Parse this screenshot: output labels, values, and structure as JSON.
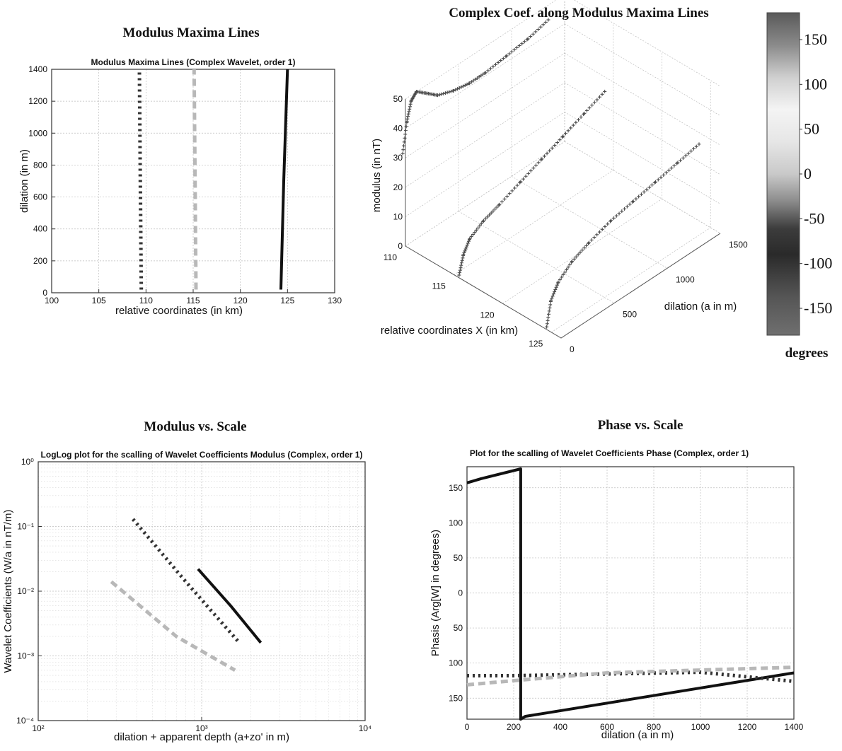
{
  "figure_titles": {
    "maxima": "Modulus Maxima Lines",
    "complex3d": "Complex Coef.  along Modulus Maxima Lines",
    "modulus": "Modulus vs. Scale",
    "phase": "Phase vs. Scale"
  },
  "colorbar": {
    "ticks": [
      "150",
      "100",
      "50",
      "0",
      "-50",
      "-100",
      "-150"
    ],
    "unit": "degrees",
    "range": [
      -180,
      180
    ]
  },
  "chart_data": [
    {
      "id": "maxima",
      "type": "line",
      "title": "Modulus Maxima Lines (Complex Wavelet, order 1)",
      "xlabel": "relative coordinates (in km)",
      "ylabel": "dilation (in m)",
      "xlim": [
        100,
        130
      ],
      "ylim": [
        0,
        1400
      ],
      "xticks": [
        "100",
        "105",
        "110",
        "115",
        "120",
        "125",
        "130"
      ],
      "yticks": [
        "0",
        "200",
        "400",
        "600",
        "800",
        "1000",
        "1200",
        "1400"
      ],
      "grid": true,
      "series": [
        {
          "style": "dotted",
          "color": "#333333",
          "x": [
            109.5,
            109.4,
            109.3
          ],
          "y": [
            20,
            700,
            1400
          ]
        },
        {
          "style": "dashed",
          "color": "#b8b8b8",
          "x": [
            115.3,
            115.2,
            115.1
          ],
          "y": [
            20,
            700,
            1400
          ]
        },
        {
          "style": "solid",
          "color": "#111111",
          "x": [
            124.3,
            124.6,
            125.0
          ],
          "y": [
            20,
            700,
            1400
          ]
        }
      ]
    },
    {
      "id": "complex3d",
      "type": "scatter",
      "xlabel": "relative coordinates X (in km)",
      "ylabel": "dilation (a in m)",
      "zlabel": "modulus (in nT)",
      "xticks": [
        "110",
        "115",
        "120",
        "125"
      ],
      "yticks": [
        "0",
        "500",
        "1000",
        "1500"
      ],
      "zticks": [
        "0",
        "10",
        "20",
        "30",
        "40",
        "50"
      ],
      "xlim": [
        110,
        126
      ],
      "ylim": [
        0,
        1500
      ],
      "zlim": [
        0,
        50
      ],
      "series": [
        {
          "x": [
            109.5,
            109.5,
            109.5,
            109.5,
            109.5,
            109.5,
            109.5,
            109.5,
            109.5,
            109.5,
            109.5,
            109.5
          ],
          "y": [
            20,
            60,
            100,
            150,
            250,
            350,
            500,
            650,
            800,
            1000,
            1200,
            1400
          ],
          "z": [
            30,
            40,
            46,
            48,
            45,
            42,
            40,
            39,
            39,
            40,
            41,
            43
          ]
        },
        {
          "x": [
            115.3,
            115.3,
            115.3,
            115.3,
            115.3,
            115.3,
            115.3,
            115.3,
            115.3,
            115.3
          ],
          "y": [
            20,
            60,
            120,
            250,
            400,
            600,
            800,
            1000,
            1200,
            1400
          ],
          "z": [
            0,
            6,
            10,
            13,
            15,
            18,
            21,
            24,
            27,
            30
          ]
        },
        {
          "x": [
            124.3,
            124.3,
            124.4,
            124.4,
            124.5,
            124.6,
            124.7,
            124.8,
            124.9,
            125.0
          ],
          "y": [
            20,
            60,
            120,
            250,
            400,
            600,
            800,
            1000,
            1200,
            1400
          ],
          "z": [
            0,
            8,
            13,
            17,
            20,
            23,
            25,
            27,
            29,
            31
          ]
        }
      ]
    },
    {
      "id": "modulus",
      "type": "line",
      "title": "LogLog plot for the scalling of Wavelet Coefficients Modulus (Complex, order 1)",
      "xlabel": "dilation + apparent depth (a+zo' in m)",
      "ylabel": "Wavelet Coefficients (W/a  in nT/m)",
      "xscale": "log",
      "yscale": "log",
      "xlim": [
        100,
        10000
      ],
      "ylim": [
        0.0001,
        1
      ],
      "xticks": [
        "10²",
        "10³",
        "10⁴"
      ],
      "yticks": [
        "10⁻⁴",
        "10⁻³",
        "10⁻²",
        "10⁻¹",
        "10⁰"
      ],
      "grid": true,
      "series": [
        {
          "style": "dotted",
          "color": "#333333",
          "x": [
            380,
            800,
            1700
          ],
          "y": [
            0.13,
            0.014,
            0.0016
          ]
        },
        {
          "style": "dashed",
          "color": "#b8b8b8",
          "x": [
            280,
            700,
            1600
          ],
          "y": [
            0.014,
            0.002,
            0.0006
          ]
        },
        {
          "style": "solid",
          "color": "#111111",
          "x": [
            950,
            1500,
            2300
          ],
          "y": [
            0.022,
            0.006,
            0.0016
          ]
        }
      ]
    },
    {
      "id": "phase",
      "type": "line",
      "title": "Plot for the scalling of Wavelet Coefficients Phase (Complex, order 1)",
      "xlabel": "dilation (a in m)",
      "ylabel": "Phasis (Arg[W] in degrees)",
      "xlim": [
        0,
        1400
      ],
      "ylim": [
        -180,
        180
      ],
      "xticks": [
        "0",
        "200",
        "400",
        "600",
        "800",
        "1000",
        "1200",
        "1400"
      ],
      "yticks": [
        "150",
        "100",
        "50",
        "0",
        "50",
        "100",
        "150"
      ],
      "grid": true,
      "series": [
        {
          "style": "solid",
          "color": "#111111",
          "x": [
            0,
            60,
            230,
            230,
            250,
            1400
          ],
          "y": [
            157,
            163,
            177,
            -180,
            -176,
            -114
          ]
        },
        {
          "style": "dotted",
          "color": "#333333",
          "x": [
            0,
            200,
            1000,
            1400
          ],
          "y": [
            -118,
            -118,
            -113,
            -126
          ]
        },
        {
          "style": "dashed",
          "color": "#b8b8b8",
          "x": [
            0,
            200,
            600,
            1400
          ],
          "y": [
            -131,
            -125,
            -114,
            -106
          ]
        }
      ]
    }
  ]
}
